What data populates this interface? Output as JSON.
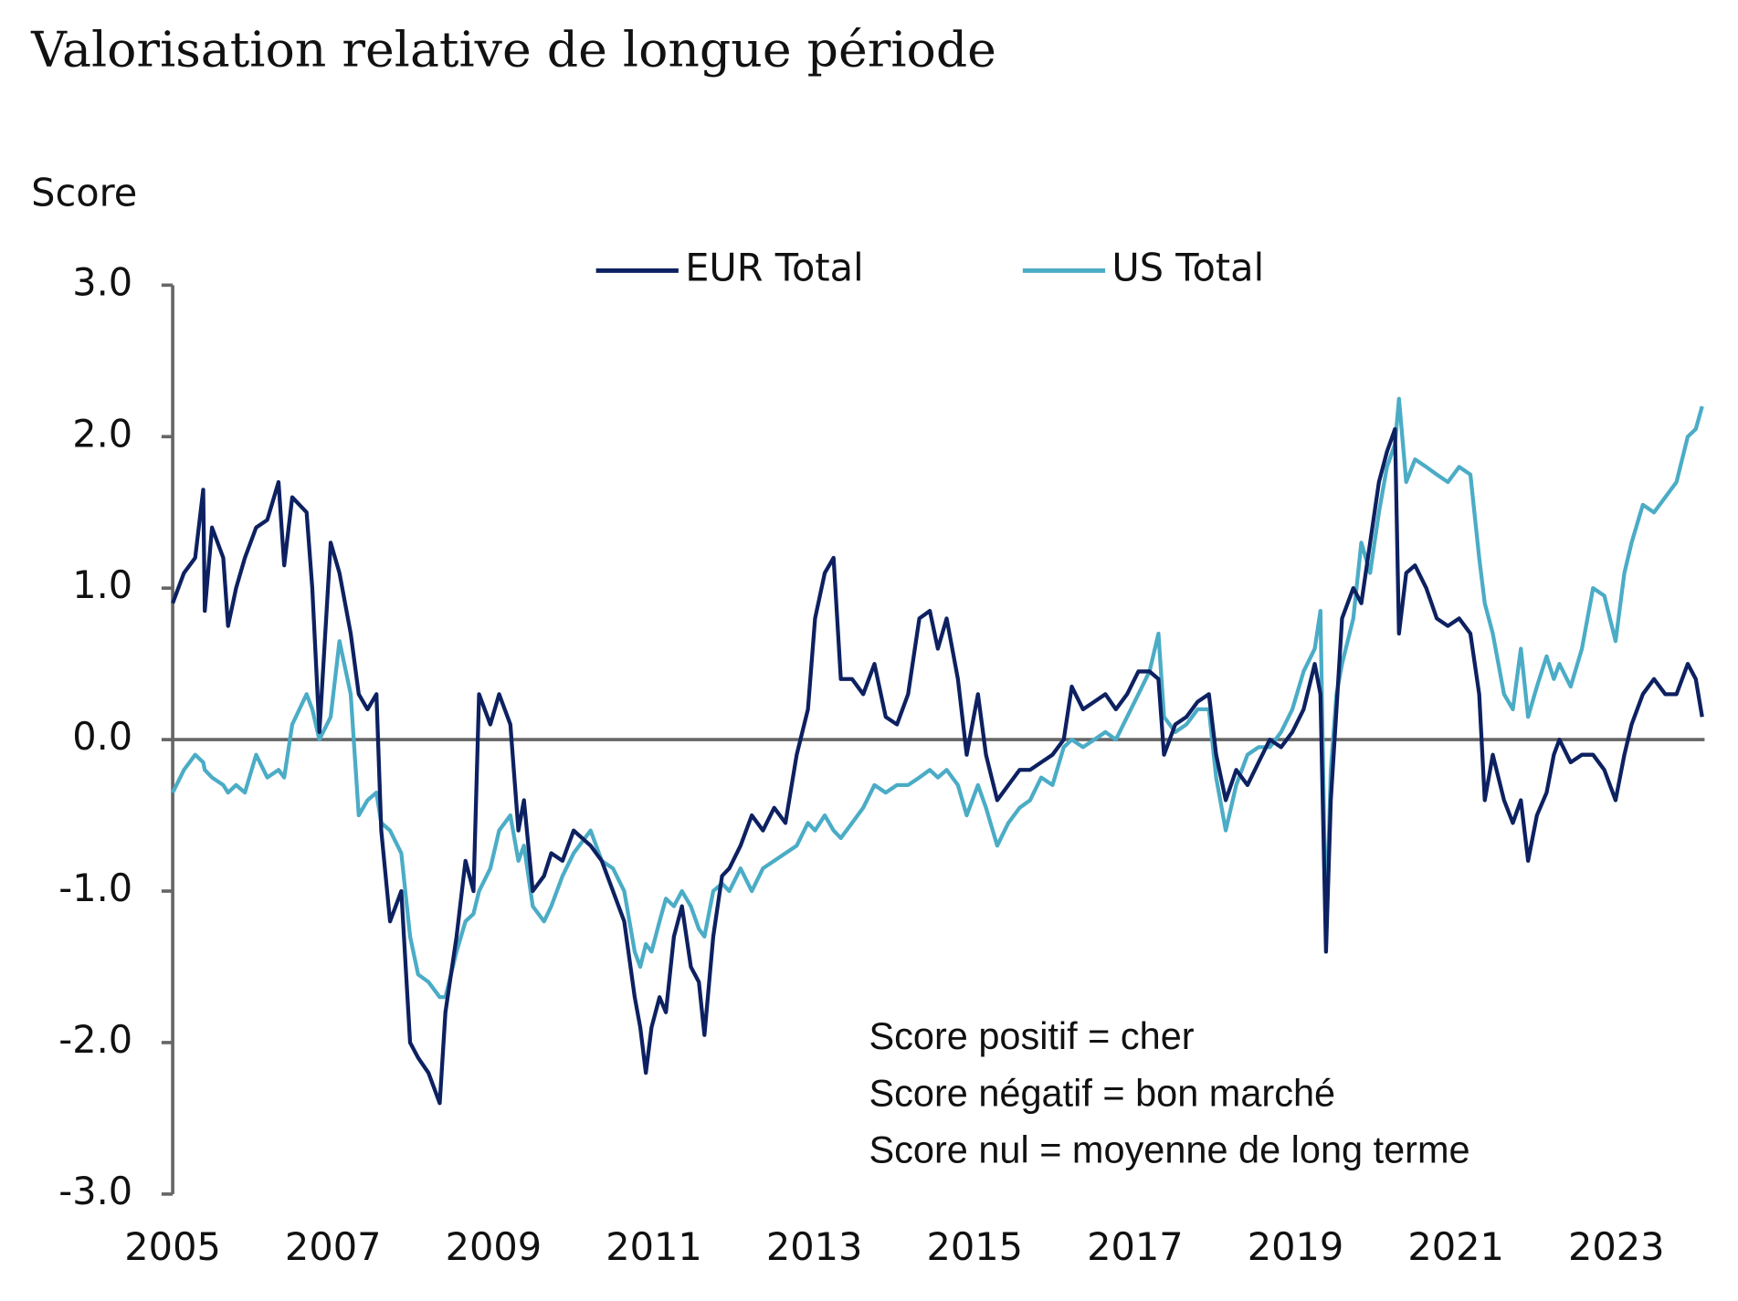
{
  "chart_data": {
    "type": "line",
    "title": "Valorisation relative de longue période",
    "y_label": "Score",
    "annotations": [
      "Score positif = cher",
      "Score négatif = bon marché",
      "Score nul = moyenne de long terme"
    ],
    "x": [
      2005.0,
      2005.14,
      2005.28,
      2005.38,
      2005.4,
      2005.49,
      2005.63,
      2005.69,
      2005.79,
      2005.9,
      2006.04,
      2006.18,
      2006.32,
      2006.39,
      2006.49,
      2006.67,
      2006.74,
      2006.83,
      2006.97,
      2007.08,
      2007.22,
      2007.32,
      2007.43,
      2007.54,
      2007.6,
      2007.71,
      2007.85,
      2007.96,
      2008.06,
      2008.19,
      2008.33,
      2008.4,
      2008.54,
      2008.65,
      2008.75,
      2008.82,
      2008.96,
      2009.07,
      2009.21,
      2009.31,
      2009.38,
      2009.49,
      2009.63,
      2009.72,
      2009.86,
      2010.0,
      2010.21,
      2010.35,
      2010.49,
      2010.63,
      2010.76,
      2010.83,
      2010.9,
      2010.97,
      2011.07,
      2011.15,
      2011.25,
      2011.35,
      2011.46,
      2011.56,
      2011.63,
      2011.74,
      2011.85,
      2011.94,
      2012.08,
      2012.22,
      2012.36,
      2012.5,
      2012.64,
      2012.78,
      2012.92,
      2013.01,
      2013.13,
      2013.24,
      2013.33,
      2013.47,
      2013.61,
      2013.75,
      2013.89,
      2014.03,
      2014.17,
      2014.31,
      2014.44,
      2014.54,
      2014.65,
      2014.79,
      2014.9,
      2015.04,
      2015.14,
      2015.28,
      2015.42,
      2015.56,
      2015.69,
      2015.83,
      2015.97,
      2016.11,
      2016.21,
      2016.35,
      2016.49,
      2016.63,
      2016.76,
      2016.9,
      2017.04,
      2017.18,
      2017.29,
      2017.36,
      2017.5,
      2017.64,
      2017.78,
      2017.92,
      2018.01,
      2018.13,
      2018.26,
      2018.4,
      2018.54,
      2018.68,
      2018.82,
      2018.96,
      2019.1,
      2019.24,
      2019.31,
      2019.38,
      2019.44,
      2019.51,
      2019.58,
      2019.72,
      2019.82,
      2019.93,
      2020.04,
      2020.14,
      2020.24,
      2020.29,
      2020.38,
      2020.49,
      2020.63,
      2020.76,
      2020.9,
      2021.04,
      2021.18,
      2021.29,
      2021.36,
      2021.46,
      2021.6,
      2021.71,
      2021.81,
      2021.9,
      2022.01,
      2022.13,
      2022.22,
      2022.29,
      2022.43,
      2022.57,
      2022.71,
      2022.85,
      2022.99,
      2023.1,
      2023.19,
      2023.33,
      2023.47,
      2023.61,
      2023.75,
      2023.89,
      2023.99,
      2024.07
    ],
    "xlim": [
      2005,
      2024.1
    ],
    "xticks": [
      2005,
      2007,
      2009,
      2011,
      2013,
      2015,
      2017,
      2019,
      2021,
      2023
    ],
    "ylim": [
      -3,
      3
    ],
    "yticks": [
      {
        "value": -3,
        "label": "-3.0"
      },
      {
        "value": -2,
        "label": "-2.0"
      },
      {
        "value": -1,
        "label": "-1.0"
      },
      {
        "value": 0,
        "label": "0.0"
      },
      {
        "value": 1,
        "label": "1.0"
      },
      {
        "value": 2,
        "label": "2.0"
      },
      {
        "value": 3,
        "label": "3.0"
      }
    ],
    "series": [
      {
        "name": "EUR Total",
        "color": "#0d2161",
        "values": [
          0.9,
          1.1,
          1.2,
          1.65,
          0.85,
          1.4,
          1.2,
          0.75,
          1.0,
          1.2,
          1.4,
          1.45,
          1.7,
          1.15,
          1.6,
          1.5,
          1.0,
          0.05,
          1.3,
          1.1,
          0.7,
          0.3,
          0.2,
          0.3,
          -0.6,
          -1.2,
          -1.0,
          -2.0,
          -2.1,
          -2.2,
          -2.4,
          -1.8,
          -1.3,
          -0.8,
          -1.0,
          0.3,
          0.1,
          0.3,
          0.1,
          -0.6,
          -0.4,
          -1.0,
          -0.9,
          -0.75,
          -0.8,
          -0.6,
          -0.7,
          -0.8,
          -1.0,
          -1.2,
          -1.7,
          -1.9,
          -2.2,
          -1.9,
          -1.7,
          -1.8,
          -1.3,
          -1.1,
          -1.5,
          -1.6,
          -1.95,
          -1.3,
          -0.9,
          -0.85,
          -0.7,
          -0.5,
          -0.6,
          -0.45,
          -0.55,
          -0.1,
          0.2,
          0.8,
          1.1,
          1.2,
          0.4,
          0.4,
          0.3,
          0.5,
          0.15,
          0.1,
          0.3,
          0.8,
          0.85,
          0.6,
          0.8,
          0.4,
          -0.1,
          0.3,
          -0.1,
          -0.4,
          -0.3,
          -0.2,
          -0.2,
          -0.15,
          -0.1,
          0.0,
          0.35,
          0.2,
          0.25,
          0.3,
          0.2,
          0.3,
          0.45,
          0.45,
          0.4,
          -0.1,
          0.1,
          0.15,
          0.25,
          0.3,
          -0.1,
          -0.4,
          -0.2,
          -0.3,
          -0.15,
          0.0,
          -0.05,
          0.05,
          0.2,
          0.5,
          0.3,
          -1.4,
          -0.4,
          0.2,
          0.8,
          1.0,
          0.9,
          1.3,
          1.7,
          1.9,
          2.05,
          0.7,
          1.1,
          1.15,
          1.0,
          0.8,
          0.75,
          0.8,
          0.7,
          0.3,
          -0.4,
          -0.1,
          -0.4,
          -0.55,
          -0.4,
          -0.8,
          -0.5,
          -0.35,
          -0.1,
          0.0,
          -0.15,
          -0.1,
          -0.1,
          -0.2,
          -0.4,
          -0.1,
          0.1,
          0.3,
          0.4,
          0.3,
          0.3,
          0.5,
          0.4,
          0.15
        ]
      },
      {
        "name": "US Total",
        "color": "#4bacc6",
        "values": [
          -0.35,
          -0.2,
          -0.1,
          -0.15,
          -0.2,
          -0.25,
          -0.3,
          -0.35,
          -0.3,
          -0.35,
          -0.1,
          -0.25,
          -0.2,
          -0.25,
          0.1,
          0.3,
          0.2,
          0.0,
          0.15,
          0.65,
          0.3,
          -0.5,
          -0.4,
          -0.35,
          -0.55,
          -0.6,
          -0.75,
          -1.3,
          -1.55,
          -1.6,
          -1.7,
          -1.7,
          -1.4,
          -1.2,
          -1.15,
          -1.0,
          -0.85,
          -0.6,
          -0.5,
          -0.8,
          -0.7,
          -1.1,
          -1.2,
          -1.1,
          -0.9,
          -0.75,
          -0.6,
          -0.8,
          -0.85,
          -1.0,
          -1.4,
          -1.5,
          -1.35,
          -1.4,
          -1.2,
          -1.05,
          -1.1,
          -1.0,
          -1.1,
          -1.25,
          -1.3,
          -1.0,
          -0.95,
          -1.0,
          -0.85,
          -1.0,
          -0.85,
          -0.8,
          -0.75,
          -0.7,
          -0.55,
          -0.6,
          -0.5,
          -0.6,
          -0.65,
          -0.55,
          -0.45,
          -0.3,
          -0.35,
          -0.3,
          -0.3,
          -0.25,
          -0.2,
          -0.25,
          -0.2,
          -0.3,
          -0.5,
          -0.3,
          -0.45,
          -0.7,
          -0.55,
          -0.45,
          -0.4,
          -0.25,
          -0.3,
          -0.05,
          0.0,
          -0.05,
          0.0,
          0.05,
          0.0,
          0.15,
          0.3,
          0.45,
          0.7,
          0.15,
          0.05,
          0.1,
          0.2,
          0.2,
          -0.25,
          -0.6,
          -0.3,
          -0.1,
          -0.05,
          -0.05,
          0.05,
          0.2,
          0.45,
          0.6,
          0.85,
          -1.3,
          -0.2,
          0.3,
          0.5,
          0.8,
          1.3,
          1.1,
          1.5,
          1.8,
          1.95,
          2.25,
          1.7,
          1.85,
          1.8,
          1.75,
          1.7,
          1.8,
          1.75,
          1.2,
          0.9,
          0.7,
          0.3,
          0.2,
          0.6,
          0.15,
          0.35,
          0.55,
          0.4,
          0.5,
          0.35,
          0.6,
          1.0,
          0.95,
          0.65,
          1.1,
          1.3,
          1.55,
          1.5,
          1.6,
          1.7,
          2.0,
          2.05,
          2.2
        ]
      }
    ]
  }
}
